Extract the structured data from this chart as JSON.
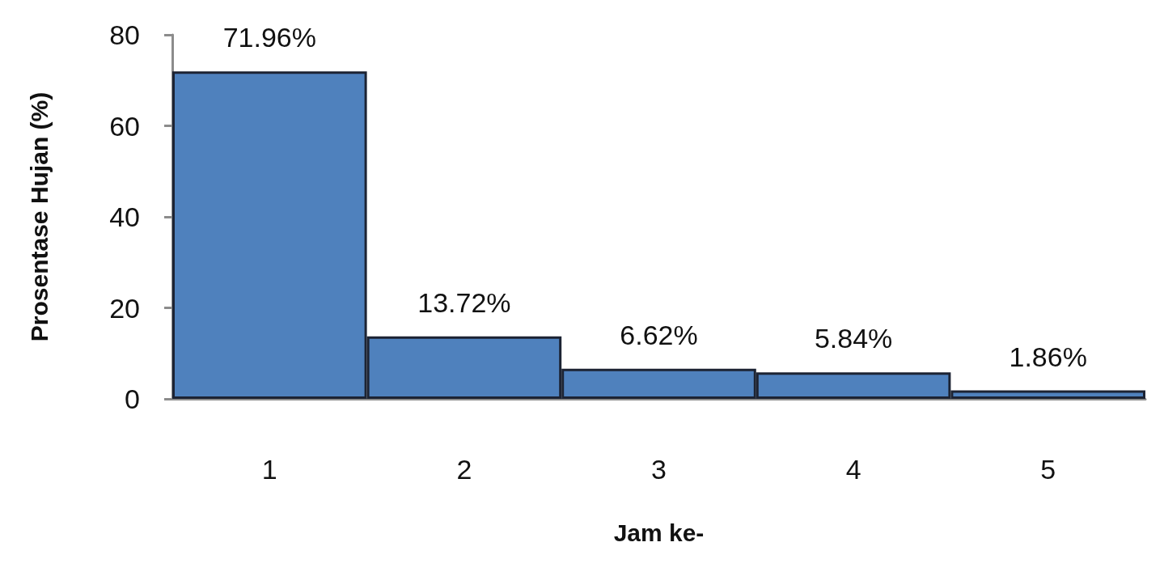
{
  "chart_data": {
    "type": "bar",
    "xlabel": "Jam ke-",
    "ylabel": "Prosentase Hujan (%)",
    "categories": [
      "1",
      "2",
      "3",
      "4",
      "5"
    ],
    "values": [
      71.96,
      13.72,
      6.62,
      5.84,
      1.86
    ],
    "value_labels": [
      "71.96%",
      "13.72%",
      "6.62%",
      "5.84%",
      "1.86%"
    ],
    "color": "#4f81bd",
    "ylim": [
      0,
      80
    ],
    "yticks": [
      0,
      20,
      40,
      60,
      80
    ],
    "grid": false
  }
}
